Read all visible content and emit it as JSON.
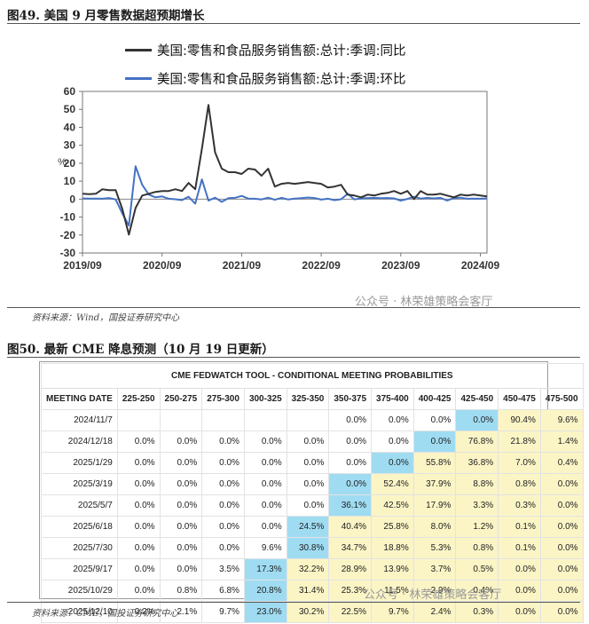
{
  "figure1": {
    "title": "图49. 美国 9 月零售数据超预期增长",
    "source": "资料来源：Wind，国投证券研究中心",
    "watermark": "公众号 · 林荣雄策略会客厅"
  },
  "figure2": {
    "title": "图50. 最新 CME 降息预测（10 月 19 日更新）",
    "source": "资料来源：CME，国投证券研究中心",
    "watermark": "公众号 · 林荣雄策略会客厅",
    "table_title": "CME FEDWATCH TOOL - CONDITIONAL MEETING PROBABILITIES",
    "header": [
      "MEETING DATE",
      "225-250",
      "250-275",
      "275-300",
      "300-325",
      "325-350",
      "350-375",
      "375-400",
      "400-425",
      "425-450",
      "450-475",
      "475-500"
    ],
    "rows": [
      [
        "2024/11/7",
        "",
        "",
        "",
        "",
        "",
        "0.0%",
        "0.0%",
        "0.0%",
        "0.0%",
        "90.4%",
        "9.6%"
      ],
      [
        "2024/12/18",
        "0.0%",
        "0.0%",
        "0.0%",
        "0.0%",
        "0.0%",
        "0.0%",
        "0.0%",
        "0.0%",
        "76.8%",
        "21.8%",
        "1.4%"
      ],
      [
        "2025/1/29",
        "0.0%",
        "0.0%",
        "0.0%",
        "0.0%",
        "0.0%",
        "0.0%",
        "0.0%",
        "55.8%",
        "36.8%",
        "7.0%",
        "0.4%"
      ],
      [
        "2025/3/19",
        "0.0%",
        "0.0%",
        "0.0%",
        "0.0%",
        "0.0%",
        "0.0%",
        "52.4%",
        "37.9%",
        "8.8%",
        "0.8%",
        "0.0%"
      ],
      [
        "2025/5/7",
        "0.0%",
        "0.0%",
        "0.0%",
        "0.0%",
        "0.0%",
        "36.1%",
        "42.5%",
        "17.9%",
        "3.3%",
        "0.3%",
        "0.0%"
      ],
      [
        "2025/6/18",
        "0.0%",
        "0.0%",
        "0.0%",
        "0.0%",
        "24.5%",
        "40.4%",
        "25.8%",
        "8.0%",
        "1.2%",
        "0.1%",
        "0.0%"
      ],
      [
        "2025/7/30",
        "0.0%",
        "0.0%",
        "0.0%",
        "9.6%",
        "30.8%",
        "34.7%",
        "18.8%",
        "5.3%",
        "0.8%",
        "0.1%",
        "0.0%"
      ],
      [
        "2025/9/17",
        "0.0%",
        "0.0%",
        "3.5%",
        "17.3%",
        "32.2%",
        "28.9%",
        "13.9%",
        "3.7%",
        "0.5%",
        "0.0%",
        "0.0%"
      ],
      [
        "2025/10/29",
        "0.0%",
        "0.8%",
        "6.8%",
        "20.8%",
        "31.4%",
        "25.3%",
        "11.5%",
        "2.9%",
        "0.4%",
        "0.0%",
        "0.0%"
      ],
      [
        "2025/12/10",
        "0.2%",
        "2.1%",
        "9.7%",
        "23.0%",
        "30.2%",
        "22.5%",
        "9.7%",
        "2.4%",
        "0.3%",
        "0.0%",
        "0.0%"
      ]
    ],
    "highlight": [
      [
        9
      ],
      [
        8
      ],
      [
        7
      ],
      [
        6
      ],
      [
        6
      ],
      [
        5
      ],
      [
        5
      ],
      [
        4
      ],
      [
        4
      ],
      [
        4
      ]
    ],
    "colors": {
      "highlight": "#9fdcf2",
      "yellow": "#fbf5c6",
      "white": "#ffffff"
    }
  },
  "chart_data": {
    "type": "line",
    "ylabel": "%",
    "ylim": [
      -30,
      60
    ],
    "yticks": [
      -30,
      -20,
      -10,
      0,
      10,
      20,
      30,
      40,
      50,
      60
    ],
    "xticks": [
      "2019/09",
      "2020/09",
      "2021/09",
      "2022/09",
      "2023/09",
      "2024/09"
    ],
    "xtick_months": [
      0,
      12,
      24,
      36,
      48,
      60
    ],
    "series": [
      {
        "name": "美国:零售和食品服务销售额:总计:季调:同比",
        "color": "#333333",
        "x": [
          0,
          1,
          2,
          3,
          4,
          5,
          6,
          7,
          8,
          9,
          10,
          11,
          12,
          13,
          14,
          15,
          16,
          17,
          18,
          19,
          20,
          21,
          22,
          23,
          24,
          25,
          26,
          27,
          28,
          29,
          30,
          31,
          32,
          33,
          34,
          35,
          36,
          37,
          38,
          39,
          40,
          41,
          42,
          43,
          44,
          45,
          46,
          47,
          48,
          49,
          50,
          51,
          52,
          53,
          54,
          55,
          56,
          57,
          58,
          59,
          60,
          61
        ],
        "values": [
          3.0,
          2.8,
          3.0,
          5.5,
          5.0,
          5.0,
          -5.5,
          -19.8,
          -5.0,
          2.0,
          3.0,
          4.0,
          4.5,
          4.5,
          5.5,
          4.5,
          9.0,
          5.5,
          28.0,
          52.5,
          26.0,
          17.0,
          15.0,
          15.0,
          14.0,
          17.0,
          16.5,
          13.0,
          17.0,
          7.0,
          8.5,
          9.0,
          8.5,
          9.0,
          9.5,
          9.0,
          8.5,
          6.5,
          7.0,
          8.0,
          2.5,
          2.0,
          1.0,
          2.5,
          2.0,
          3.0,
          3.5,
          4.5,
          3.0,
          4.5,
          0.0,
          4.5,
          2.5,
          2.5,
          3.0,
          2.0,
          1.0,
          2.5,
          2.0,
          2.5,
          2.0,
          1.5
        ]
      },
      {
        "name": "美国:零售和食品服务销售额:总计:季调:环比",
        "color": "#4472c4",
        "x": [
          0,
          1,
          2,
          3,
          4,
          5,
          6,
          7,
          8,
          9,
          10,
          11,
          12,
          13,
          14,
          15,
          16,
          17,
          18,
          19,
          20,
          21,
          22,
          23,
          24,
          25,
          26,
          27,
          28,
          29,
          30,
          31,
          32,
          33,
          34,
          35,
          36,
          37,
          38,
          39,
          40,
          41,
          42,
          43,
          44,
          45,
          46,
          47,
          48,
          49,
          50,
          51,
          52,
          53,
          54,
          55,
          56,
          57,
          58,
          59,
          60,
          61
        ],
        "values": [
          0.4,
          0.3,
          0.3,
          0.2,
          0.6,
          -0.2,
          -8.0,
          -14.7,
          18.3,
          8.0,
          2.5,
          1.0,
          1.5,
          0.2,
          -0.1,
          -0.6,
          1.3,
          -2.5,
          11.0,
          -0.8,
          0.8,
          -1.5,
          0.5,
          0.7,
          1.8,
          0.3,
          0.2,
          -0.2,
          0.8,
          -0.4,
          0.7,
          -0.2,
          0.3,
          0.5,
          0.9,
          0.6,
          -0.3,
          0.2,
          -0.6,
          -0.1,
          3.0,
          -0.2,
          0.4,
          0.6,
          0.7,
          0.5,
          0.6,
          0.4,
          -0.8,
          0.1,
          1.3,
          0.3,
          0.7,
          0.4,
          0.7,
          -0.8,
          0.6,
          0.8,
          0.2,
          0.3,
          0.2,
          0.4
        ]
      }
    ]
  }
}
